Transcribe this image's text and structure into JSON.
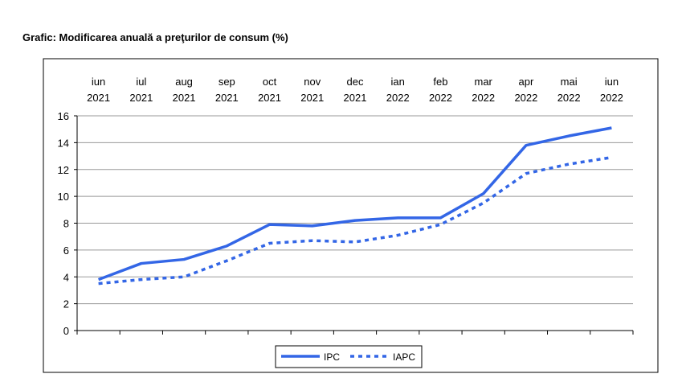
{
  "title": "Grafic: Modificarea anuală a preţurilor de consum (%)",
  "chart_data": {
    "type": "line",
    "categories": [
      [
        "iun",
        "2021"
      ],
      [
        "iul",
        "2021"
      ],
      [
        "aug",
        "2021"
      ],
      [
        "sep",
        "2021"
      ],
      [
        "oct",
        "2021"
      ],
      [
        "nov",
        "2021"
      ],
      [
        "dec",
        "2021"
      ],
      [
        "ian",
        "2022"
      ],
      [
        "feb",
        "2022"
      ],
      [
        "mar",
        "2022"
      ],
      [
        "apr",
        "2022"
      ],
      [
        "mai",
        "2022"
      ],
      [
        "iun",
        "2022"
      ]
    ],
    "ylim": [
      0,
      16
    ],
    "yticks": [
      0,
      2,
      4,
      6,
      8,
      10,
      12,
      14,
      16
    ],
    "grid": true,
    "legend_position": "bottom-center",
    "series": [
      {
        "name": "IPC",
        "style": "solid",
        "color": "#3366e6",
        "values": [
          3.8,
          5.0,
          5.3,
          6.3,
          7.9,
          7.8,
          8.2,
          8.4,
          8.4,
          10.2,
          13.8,
          14.5,
          15.1
        ]
      },
      {
        "name": "IAPC",
        "style": "dotted",
        "color": "#3366e6",
        "values": [
          3.5,
          3.8,
          4.0,
          5.2,
          6.5,
          6.7,
          6.6,
          7.1,
          7.9,
          9.5,
          11.7,
          12.4,
          12.9
        ]
      }
    ]
  }
}
